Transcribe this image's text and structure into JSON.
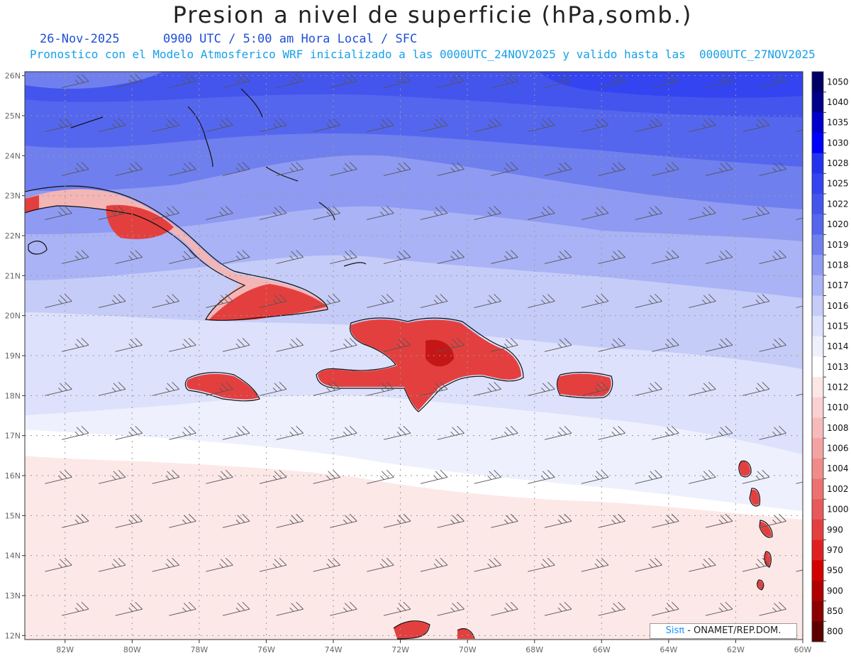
{
  "title": "Presion a nivel de superficie (hPa,somb.)",
  "subtitle_line1": "26-Nov-2025      0900 UTC / 5:00 am Hora Local / SFC",
  "subtitle_line2": "Pronostico con el Modelo Atmosferico WRF inicializado a las 0000UTC_24NOV2025 y valido hasta las  0000UTC_27NOV2025",
  "map": {
    "lon_range": [
      -83.2,
      -60
    ],
    "lat_range": [
      11.9,
      26.1
    ],
    "lon_ticks": [
      "82W",
      "80W",
      "78W",
      "76W",
      "74W",
      "72W",
      "70W",
      "68W",
      "66W",
      "64W",
      "62W",
      "60W"
    ],
    "lat_ticks": [
      "26N",
      "25N",
      "24N",
      "23N",
      "22N",
      "21N",
      "20N",
      "19N",
      "18N",
      "17N",
      "16N",
      "15N",
      "14N",
      "13N",
      "12N"
    ],
    "gridlines": true,
    "wind_barbs": true
  },
  "colorbar": {
    "labels": [
      "1050",
      "1040",
      "1035",
      "1030",
      "1028",
      "1025",
      "1022",
      "1020",
      "1019",
      "1018",
      "1017",
      "1016",
      "1015",
      "1014",
      "1013",
      "1012",
      "1010",
      "1008",
      "1006",
      "1004",
      "1002",
      "1000",
      "990",
      "970",
      "950",
      "900",
      "850",
      "800"
    ],
    "colors": [
      "#000066",
      "#00008b",
      "#0000cd",
      "#0000ff",
      "#2233ee",
      "#3344f0",
      "#4455ee",
      "#5566ee",
      "#6f7fee",
      "#8f9bf2",
      "#aab3f5",
      "#c6ccf8",
      "#dde1fb",
      "#eef0fd",
      "#ffffff",
      "#fde6e6",
      "#fad0d0",
      "#f7baba",
      "#f4a3a3",
      "#f08b8b",
      "#ec7272",
      "#e85a5a",
      "#e43f3f",
      "#e02020",
      "#d40000",
      "#b00000",
      "#8b0000",
      "#5c0000"
    ]
  },
  "credit": {
    "brand": "Sisπ",
    "text": " - ONAMET/REP.DOM."
  }
}
